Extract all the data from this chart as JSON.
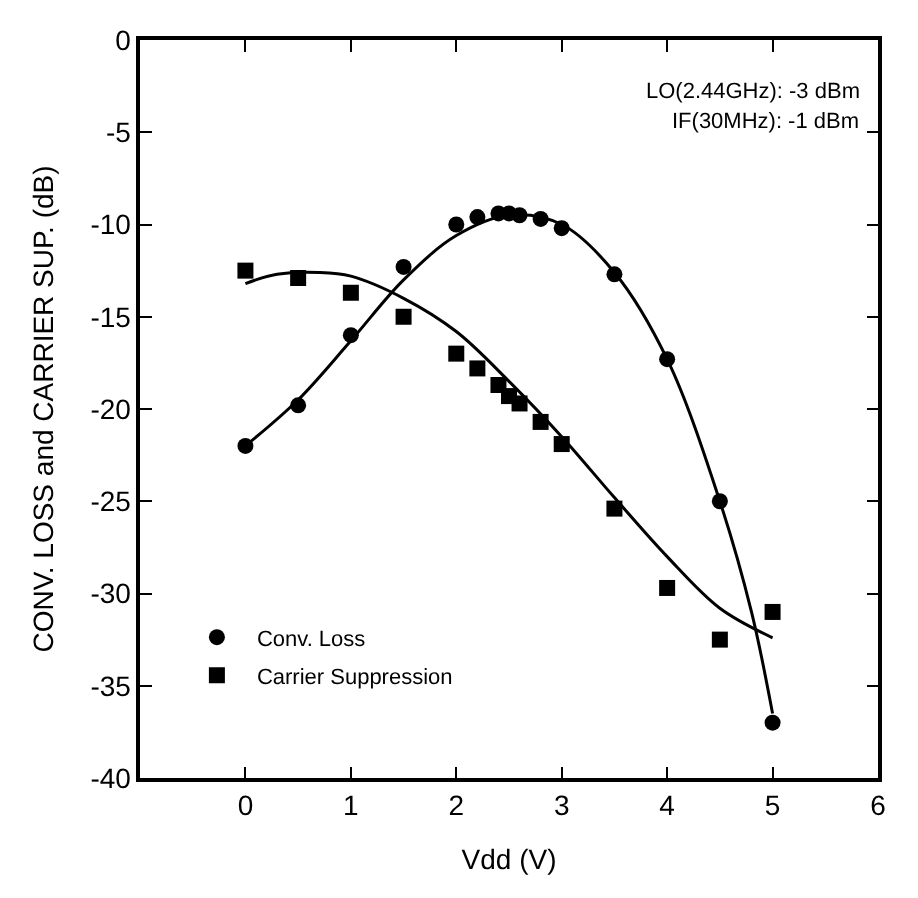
{
  "chart_data": {
    "type": "scatter",
    "xlabel": "Vdd (V)",
    "ylabel": "CONV. LOSS and CARRIER SUP. (dB)",
    "xlim": [
      -1,
      6
    ],
    "xticks": [
      0,
      1,
      2,
      3,
      4,
      5,
      6
    ],
    "ylim": [
      -40,
      0
    ],
    "yticks": [
      -40,
      -35,
      -30,
      -25,
      -20,
      -15,
      -10,
      -5,
      0
    ],
    "legend": "bottom left",
    "annotations": [
      "LO(2.44GHz): -3 dBm",
      "IF(30MHz): -1 dBm"
    ],
    "series": [
      {
        "name": "Conv. Loss",
        "color": "#000000",
        "marker": "circle",
        "x": [
          0,
          0.5,
          1,
          1.5,
          2,
          2.2,
          2.4,
          2.5,
          2.6,
          2.8,
          3,
          3.5,
          4,
          4.5,
          5
        ],
        "values": [
          -22,
          -19.8,
          -16,
          -12.3,
          -10,
          -9.6,
          -9.4,
          -9.4,
          -9.5,
          -9.7,
          -10.2,
          -12.7,
          -17.3,
          -25,
          -37
        ]
      },
      {
        "name": "Carrier Suppression",
        "color": "#000000",
        "marker": "square",
        "x": [
          0,
          0.5,
          1,
          1.5,
          2,
          2.2,
          2.4,
          2.5,
          2.6,
          2.8,
          3,
          3.5,
          4,
          4.5,
          5
        ],
        "values": [
          -12.5,
          -12.9,
          -13.7,
          -15,
          -17,
          -17.8,
          -18.7,
          -19.3,
          -19.7,
          -20.7,
          -21.9,
          -25.4,
          -29.7,
          -32.5,
          -31
        ]
      },
      {
        "type": "line",
        "color": "#000000",
        "x": [
          0,
          0.5,
          1,
          1.5,
          2,
          2.5,
          3,
          3.5,
          4,
          4.5,
          4.8,
          5
        ],
        "values": [
          -22,
          -19.5,
          -16.3,
          -13,
          -10.6,
          -9.5,
          -10,
          -12.6,
          -17.3,
          -25,
          -31,
          -36.5
        ]
      },
      {
        "type": "line",
        "color": "#000000",
        "x": [
          0,
          0.3,
          0.7,
          1,
          1.5,
          2,
          2.5,
          3,
          3.5,
          4,
          4.5,
          5
        ],
        "values": [
          -13.2,
          -12.7,
          -12.6,
          -12.8,
          -14,
          -15.8,
          -18.5,
          -21.5,
          -24.8,
          -28,
          -30.8,
          -32.4
        ]
      }
    ]
  }
}
